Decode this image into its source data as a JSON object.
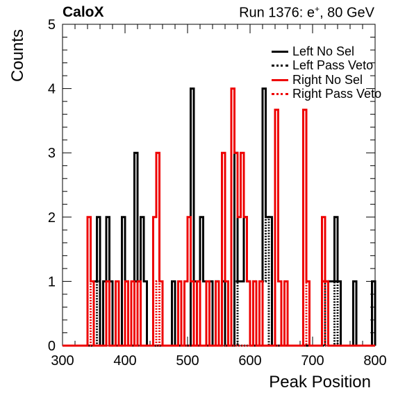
{
  "chart_data": {
    "type": "line",
    "title_left": "CaloX",
    "title_right_prefix": "Run 1376: e",
    "title_right_sup": "+",
    "title_right_suffix": ", 80 GeV",
    "xlabel": "Peak Position",
    "ylabel": "Counts",
    "xlim": [
      300,
      800
    ],
    "ylim": [
      0,
      5
    ],
    "x_ticks": [
      300,
      400,
      500,
      600,
      700,
      800
    ],
    "y_ticks": [
      0,
      1,
      2,
      3,
      4,
      5
    ],
    "bin_width": 5,
    "legend_position": "top-right",
    "series": [
      {
        "name": "Left No Sel",
        "color": "#000000",
        "style": "solid",
        "bins": [
          [
            350,
            1
          ],
          [
            355,
            2
          ],
          [
            360,
            0
          ],
          [
            365,
            1
          ],
          [
            370,
            2
          ],
          [
            375,
            1
          ],
          [
            380,
            0
          ],
          [
            395,
            2
          ],
          [
            400,
            1
          ],
          [
            405,
            0
          ],
          [
            415,
            3
          ],
          [
            420,
            1
          ],
          [
            425,
            2
          ],
          [
            430,
            1
          ],
          [
            435,
            0
          ],
          [
            475,
            1
          ],
          [
            480,
            0
          ],
          [
            505,
            4
          ],
          [
            510,
            1
          ],
          [
            520,
            2
          ],
          [
            525,
            1
          ],
          [
            530,
            0
          ],
          [
            535,
            1
          ],
          [
            540,
            0
          ],
          [
            545,
            1
          ],
          [
            550,
            0
          ],
          [
            555,
            1
          ],
          [
            560,
            0
          ],
          [
            575,
            3
          ],
          [
            580,
            1
          ],
          [
            590,
            2
          ],
          [
            595,
            1
          ],
          [
            600,
            0
          ],
          [
            620,
            4
          ],
          [
            625,
            2
          ],
          [
            630,
            2
          ],
          [
            635,
            0
          ],
          [
            715,
            1
          ],
          [
            735,
            2
          ],
          [
            740,
            1
          ],
          [
            745,
            0
          ],
          [
            765,
            1
          ],
          [
            770,
            0
          ],
          [
            795,
            1
          ],
          [
            800,
            0
          ]
        ]
      },
      {
        "name": "Left Pass Veto",
        "color": "#000000",
        "style": "dotted",
        "bins": [
          [
            355,
            1
          ],
          [
            360,
            0
          ],
          [
            370,
            1
          ],
          [
            375,
            0
          ],
          [
            415,
            1
          ],
          [
            420,
            0
          ],
          [
            505,
            1
          ],
          [
            510,
            0
          ],
          [
            555,
            1
          ],
          [
            560,
            0
          ],
          [
            575,
            1
          ],
          [
            580,
            0
          ],
          [
            620,
            1
          ],
          [
            625,
            2
          ],
          [
            630,
            0
          ],
          [
            720,
            1
          ],
          [
            725,
            0
          ],
          [
            735,
            1
          ],
          [
            740,
            0
          ]
        ]
      },
      {
        "name": "Right No Sel",
        "color": "#ee0000",
        "style": "solid",
        "bins": [
          [
            340,
            2
          ],
          [
            345,
            1
          ],
          [
            350,
            0
          ],
          [
            370,
            1
          ],
          [
            375,
            0
          ],
          [
            385,
            1
          ],
          [
            390,
            0
          ],
          [
            400,
            1
          ],
          [
            405,
            0
          ],
          [
            410,
            1
          ],
          [
            415,
            0
          ],
          [
            420,
            1
          ],
          [
            425,
            0
          ],
          [
            445,
            2
          ],
          [
            450,
            3
          ],
          [
            455,
            1
          ],
          [
            460,
            0
          ],
          [
            485,
            1
          ],
          [
            490,
            0
          ],
          [
            495,
            1
          ],
          [
            500,
            2
          ],
          [
            505,
            1
          ],
          [
            510,
            0
          ],
          [
            515,
            1
          ],
          [
            520,
            0
          ],
          [
            530,
            1
          ],
          [
            535,
            0
          ],
          [
            545,
            1
          ],
          [
            550,
            0
          ],
          [
            555,
            3
          ],
          [
            560,
            1
          ],
          [
            565,
            0
          ],
          [
            570,
            4
          ],
          [
            575,
            3
          ],
          [
            580,
            2
          ],
          [
            585,
            3
          ],
          [
            590,
            2
          ],
          [
            595,
            1
          ],
          [
            600,
            0
          ],
          [
            605,
            1
          ],
          [
            610,
            0
          ],
          [
            615,
            1
          ],
          [
            620,
            0
          ],
          [
            640,
            3.67
          ],
          [
            645,
            1
          ],
          [
            650,
            0
          ],
          [
            655,
            1
          ],
          [
            660,
            0
          ],
          [
            685,
            3.67
          ],
          [
            690,
            1
          ],
          [
            695,
            0
          ],
          [
            715,
            2
          ],
          [
            720,
            1
          ],
          [
            725,
            0
          ]
        ]
      },
      {
        "name": "Right Pass Veto",
        "color": "#ee0000",
        "style": "dotted",
        "bins": [
          [
            340,
            1
          ],
          [
            345,
            0
          ],
          [
            450,
            1
          ],
          [
            455,
            0
          ],
          [
            605,
            1
          ],
          [
            610,
            0
          ],
          [
            690,
            1
          ],
          [
            695,
            0
          ],
          [
            715,
            1
          ],
          [
            720,
            0
          ]
        ]
      }
    ]
  }
}
